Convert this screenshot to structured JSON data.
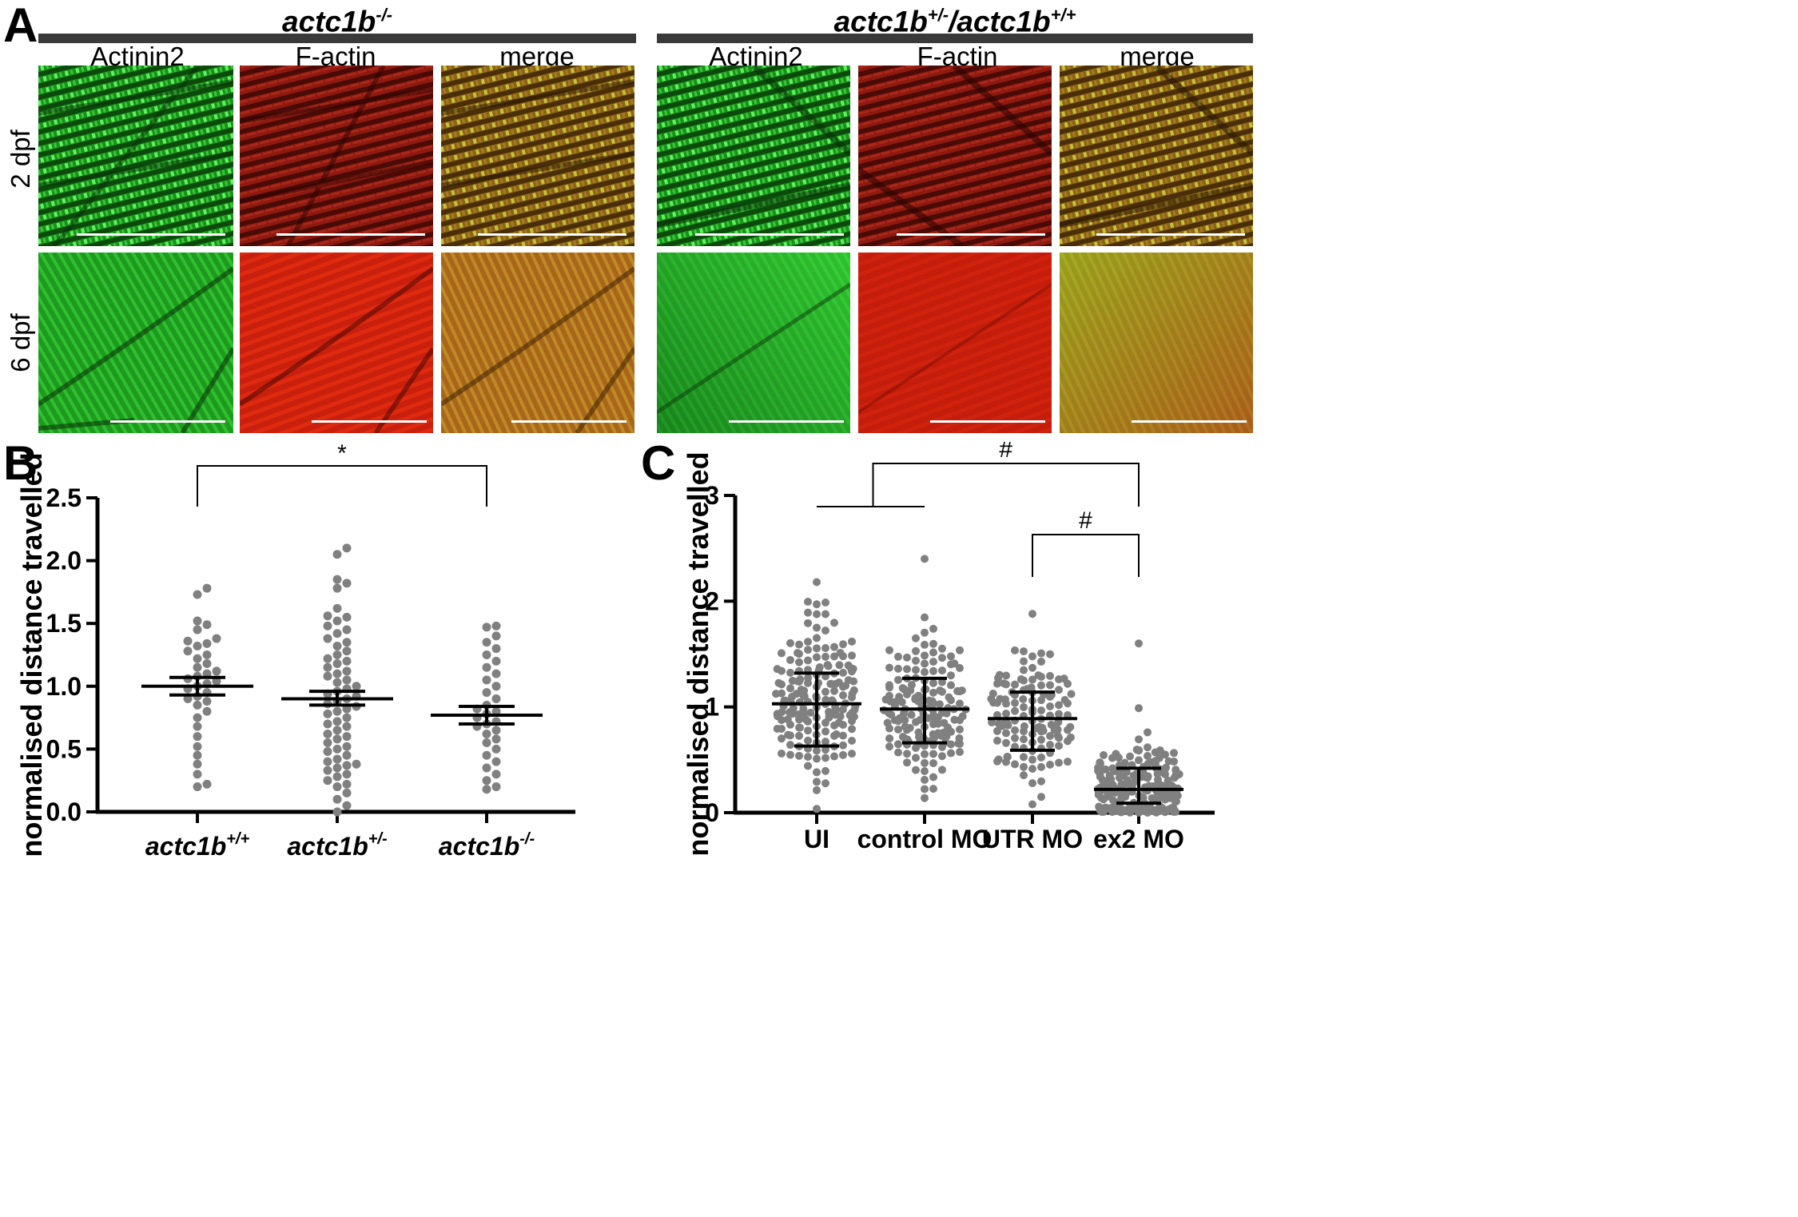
{
  "panel_a": {
    "letter": "A",
    "groups": [
      {
        "title": "actc1b",
        "title_sup": "-/-"
      },
      {
        "title": "actc1b",
        "title_sup": "+/-",
        "title_mid": "/actc1b",
        "title_sup2": "+/+"
      }
    ],
    "channels": [
      "Actinin2",
      "F-actin",
      "merge"
    ],
    "rows": [
      "2 dpf",
      "6 dpf"
    ],
    "colors": {
      "green": "#1fc21f",
      "red": "#d21a0a",
      "merge": "#b08a1a"
    }
  },
  "chart_data": [
    {
      "panel": "B",
      "type": "scatter",
      "ylabel": "normalised distance travelled",
      "ylim": [
        0,
        2.5
      ],
      "yticks": [
        "0.0",
        "0.5",
        "1.0",
        "1.5",
        "2.0",
        "2.5"
      ],
      "categories": [
        {
          "base": "actc1b",
          "sup": "+/+"
        },
        {
          "base": "actc1b",
          "sup": "+/-"
        },
        {
          "base": "actc1b",
          "sup": "-/-"
        }
      ],
      "series": [
        {
          "mean": 1.0,
          "sem_low": 0.93,
          "sem_high": 1.07,
          "values": [
            1.78,
            1.73,
            1.49,
            1.52,
            1.45,
            1.38,
            1.36,
            1.34,
            1.32,
            1.28,
            1.25,
            1.22,
            1.18,
            1.15,
            1.12,
            1.1,
            1.08,
            1.06,
            1.04,
            1.02,
            1.0,
            0.98,
            0.95,
            0.92,
            0.9,
            0.88,
            0.85,
            0.8,
            0.75,
            0.68,
            0.6,
            0.52,
            0.45,
            0.38,
            0.3,
            0.22,
            0.2
          ]
        },
        {
          "mean": 0.9,
          "sem_low": 0.85,
          "sem_high": 0.96,
          "values": [
            2.1,
            2.05,
            1.85,
            1.82,
            1.78,
            1.62,
            1.56,
            1.55,
            1.52,
            1.48,
            1.45,
            1.42,
            1.38,
            1.35,
            1.32,
            1.28,
            1.25,
            1.22,
            1.2,
            1.18,
            1.15,
            1.12,
            1.1,
            1.08,
            1.05,
            1.03,
            1.0,
            0.98,
            0.96,
            0.94,
            0.92,
            0.9,
            0.88,
            0.86,
            0.84,
            0.82,
            0.8,
            0.78,
            0.75,
            0.72,
            0.7,
            0.68,
            0.65,
            0.62,
            0.6,
            0.58,
            0.55,
            0.52,
            0.5,
            0.48,
            0.45,
            0.42,
            0.4,
            0.38,
            0.37,
            0.35,
            0.33,
            0.3,
            0.28,
            0.25,
            0.22,
            0.2,
            0.15,
            0.1,
            0.05,
            0.0
          ]
        },
        {
          "mean": 0.77,
          "sem_low": 0.7,
          "sem_high": 0.84,
          "values": [
            1.48,
            1.47,
            1.4,
            1.35,
            1.3,
            1.25,
            1.2,
            1.15,
            1.1,
            1.05,
            1.0,
            0.95,
            0.9,
            0.85,
            0.82,
            0.8,
            0.78,
            0.75,
            0.72,
            0.7,
            0.68,
            0.65,
            0.62,
            0.58,
            0.55,
            0.5,
            0.45,
            0.4,
            0.35,
            0.3,
            0.25,
            0.2,
            0.18
          ]
        }
      ],
      "significance": [
        {
          "label": "*",
          "from": 0,
          "to": 2
        }
      ]
    },
    {
      "panel": "C",
      "type": "scatter",
      "ylabel": "normalised distance travelled",
      "ylim": [
        0,
        3
      ],
      "yticks": [
        "0",
        "1",
        "2",
        "3"
      ],
      "categories": [
        {
          "base": "UI"
        },
        {
          "base": "control MO"
        },
        {
          "base": "UTR MO"
        },
        {
          "base": "ex2 MO"
        }
      ],
      "series": [
        {
          "mean": 1.03,
          "sd_low": 0.63,
          "sd_high": 1.32,
          "n": 180,
          "dist": [
            1.03,
            0.36,
            0.02,
            2.18
          ]
        },
        {
          "mean": 0.98,
          "sd_low": 0.66,
          "sd_high": 1.27,
          "n": 170,
          "dist": [
            0.98,
            0.33,
            0.1,
            2.4
          ]
        },
        {
          "mean": 0.89,
          "sd_low": 0.59,
          "sd_high": 1.14,
          "n": 130,
          "dist": [
            0.89,
            0.3,
            0.05,
            1.88
          ]
        },
        {
          "mean": 0.22,
          "sd_low": 0.09,
          "sd_high": 0.42,
          "n": 220,
          "dist": [
            0.22,
            0.25,
            0.0,
            1.6
          ]
        }
      ],
      "significance": [
        {
          "label": "#",
          "from_group": [
            0,
            1
          ],
          "to": 3
        },
        {
          "label": "#",
          "from": 2,
          "to": 3
        }
      ]
    }
  ]
}
